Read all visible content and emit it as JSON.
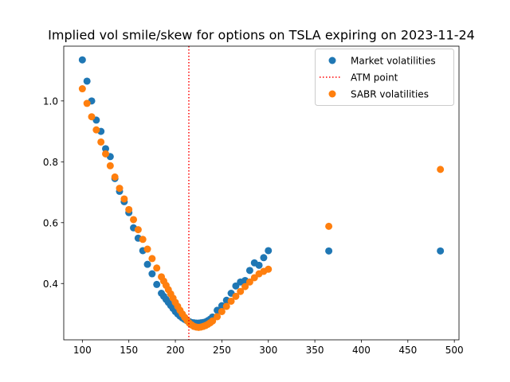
{
  "chart_data": {
    "type": "scatter",
    "title": "Implied vol smile/skew for options on TSLA expiring on 2023-11-24",
    "xlabel": "",
    "ylabel": "",
    "xlim": [
      80,
      505
    ],
    "ylim": [
      0.215,
      1.18
    ],
    "x_ticks": [
      100,
      150,
      200,
      250,
      300,
      350,
      400,
      450,
      500
    ],
    "y_ticks": [
      0.4,
      0.6,
      0.8,
      1.0
    ],
    "x_tick_labels": [
      "100",
      "150",
      "200",
      "250",
      "300",
      "350",
      "400",
      "450",
      "500"
    ],
    "y_tick_labels": [
      "0.4",
      "0.6",
      "0.8",
      "1.0"
    ],
    "grid": false,
    "legend_position": "upper right",
    "atm_point": 214.5,
    "series": [
      {
        "name": "Market volatilities",
        "color": "#1f77b4",
        "marker": "circle",
        "points": [
          [
            100,
            1.135
          ],
          [
            105,
            1.065
          ],
          [
            110,
            1.0
          ],
          [
            115,
            0.937
          ],
          [
            120,
            0.9
          ],
          [
            125,
            0.843
          ],
          [
            130,
            0.817
          ],
          [
            135,
            0.745
          ],
          [
            140,
            0.703
          ],
          [
            145,
            0.669
          ],
          [
            150,
            0.633
          ],
          [
            155,
            0.583
          ],
          [
            160,
            0.549
          ],
          [
            165,
            0.508
          ],
          [
            170,
            0.463
          ],
          [
            175,
            0.432
          ],
          [
            180,
            0.397
          ],
          [
            185,
            0.368
          ],
          [
            187.5,
            0.358
          ],
          [
            190,
            0.348
          ],
          [
            192.5,
            0.338
          ],
          [
            195,
            0.328
          ],
          [
            197.5,
            0.318
          ],
          [
            200,
            0.308
          ],
          [
            202.5,
            0.3
          ],
          [
            205,
            0.293
          ],
          [
            207.5,
            0.287
          ],
          [
            210,
            0.282
          ],
          [
            212.5,
            0.278
          ],
          [
            215,
            0.275
          ],
          [
            217.5,
            0.272
          ],
          [
            220,
            0.271
          ],
          [
            222.5,
            0.27
          ],
          [
            225,
            0.27
          ],
          [
            227.5,
            0.271
          ],
          [
            230,
            0.272
          ],
          [
            232.5,
            0.274
          ],
          [
            235,
            0.278
          ],
          [
            237.5,
            0.283
          ],
          [
            240,
            0.29
          ],
          [
            245,
            0.312
          ],
          [
            250,
            0.327
          ],
          [
            255,
            0.345
          ],
          [
            260,
            0.368
          ],
          [
            265,
            0.392
          ],
          [
            270,
            0.405
          ],
          [
            275,
            0.41
          ],
          [
            280,
            0.443
          ],
          [
            285,
            0.468
          ],
          [
            290,
            0.46
          ],
          [
            295,
            0.485
          ],
          [
            300,
            0.508
          ],
          [
            365,
            0.507
          ],
          [
            485,
            0.507
          ]
        ]
      },
      {
        "name": "SABR volatilities",
        "color": "#ff7f0e",
        "marker": "circle",
        "points": [
          [
            100,
            1.04
          ],
          [
            105,
            0.992
          ],
          [
            110,
            0.948
          ],
          [
            115,
            0.905
          ],
          [
            120,
            0.865
          ],
          [
            125,
            0.826
          ],
          [
            130,
            0.787
          ],
          [
            135,
            0.75
          ],
          [
            140,
            0.713
          ],
          [
            145,
            0.678
          ],
          [
            150,
            0.643
          ],
          [
            155,
            0.61
          ],
          [
            160,
            0.577
          ],
          [
            165,
            0.545
          ],
          [
            170,
            0.513
          ],
          [
            175,
            0.482
          ],
          [
            180,
            0.451
          ],
          [
            185,
            0.422
          ],
          [
            187.5,
            0.408
          ],
          [
            190,
            0.394
          ],
          [
            192.5,
            0.38
          ],
          [
            195,
            0.366
          ],
          [
            197.5,
            0.352
          ],
          [
            200,
            0.338
          ],
          [
            202.5,
            0.325
          ],
          [
            205,
            0.312
          ],
          [
            207.5,
            0.3
          ],
          [
            210,
            0.289
          ],
          [
            212.5,
            0.279
          ],
          [
            215,
            0.27
          ],
          [
            217.5,
            0.264
          ],
          [
            220,
            0.259
          ],
          [
            222.5,
            0.257
          ],
          [
            225,
            0.256
          ],
          [
            227.5,
            0.257
          ],
          [
            230,
            0.259
          ],
          [
            232.5,
            0.262
          ],
          [
            235,
            0.266
          ],
          [
            237.5,
            0.271
          ],
          [
            240,
            0.277
          ],
          [
            245,
            0.291
          ],
          [
            250,
            0.308
          ],
          [
            255,
            0.325
          ],
          [
            260,
            0.342
          ],
          [
            265,
            0.358
          ],
          [
            270,
            0.374
          ],
          [
            275,
            0.39
          ],
          [
            280,
            0.405
          ],
          [
            285,
            0.419
          ],
          [
            290,
            0.432
          ],
          [
            295,
            0.44
          ],
          [
            300,
            0.447
          ],
          [
            365,
            0.588
          ],
          [
            485,
            0.775
          ]
        ]
      }
    ],
    "reference_lines": [
      {
        "name": "ATM point",
        "orientation": "vertical",
        "x": 214.5,
        "color": "#ff0000",
        "style": "dotted"
      }
    ],
    "legend": [
      {
        "label": "Market volatilities",
        "type": "marker",
        "color": "#1f77b4"
      },
      {
        "label": "ATM point",
        "type": "dotted-line",
        "color": "#ff0000"
      },
      {
        "label": "SABR volatilities",
        "type": "marker",
        "color": "#ff7f0e"
      }
    ]
  }
}
